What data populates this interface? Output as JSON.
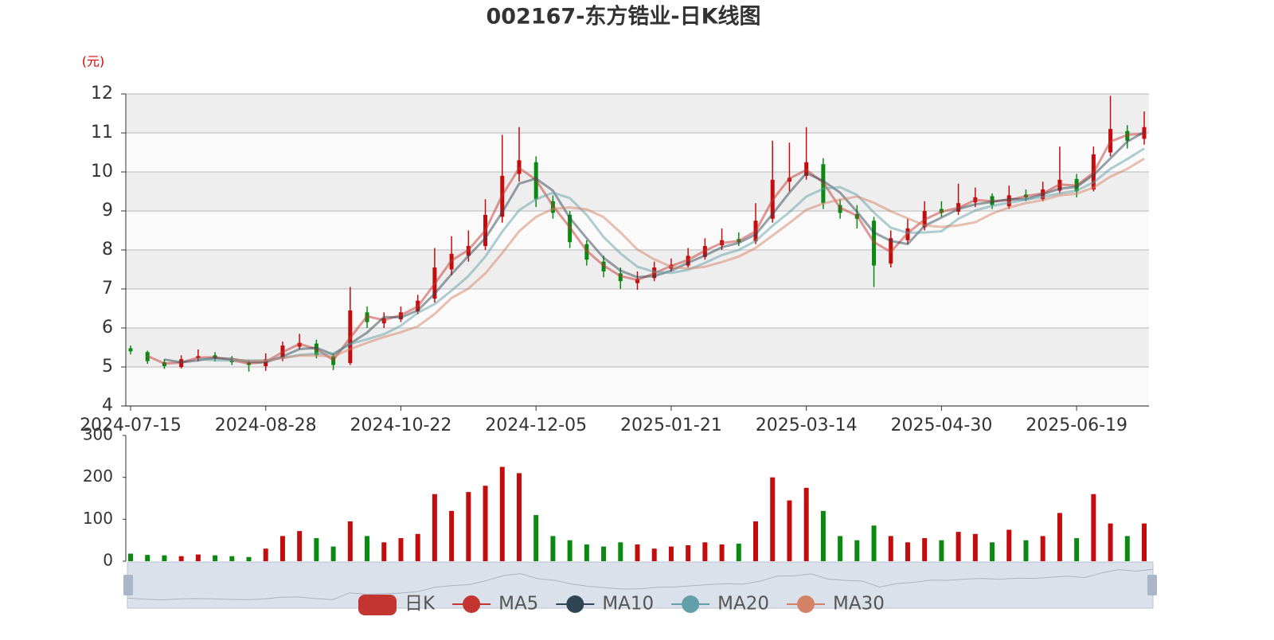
{
  "chart_data": {
    "type": "candlestick",
    "title": "002167-东方锆业-日K线图",
    "y_label": "(元)",
    "categories": [
      "2024-07-15",
      null,
      null,
      null,
      null,
      null,
      null,
      null,
      "2024-08-28",
      null,
      null,
      null,
      null,
      null,
      null,
      null,
      "2024-10-22",
      null,
      null,
      null,
      null,
      null,
      null,
      null,
      "2024-12-05",
      null,
      null,
      null,
      null,
      null,
      null,
      null,
      "2025-01-21",
      null,
      null,
      null,
      null,
      null,
      null,
      null,
      "2025-03-14",
      null,
      null,
      null,
      null,
      null,
      null,
      null,
      "2025-04-30",
      null,
      null,
      null,
      null,
      null,
      null,
      null,
      "2025-06-19",
      null,
      null,
      null,
      null
    ],
    "ylim": [
      4,
      12
    ],
    "yticks": [
      4,
      5,
      6,
      7,
      8,
      9,
      10,
      11,
      12
    ],
    "grid": true,
    "up_color": "#c40c0c",
    "down_color": "#0b8a12",
    "line_opacity": 0.5,
    "series": [
      {
        "name": "日K",
        "color": "#c23531",
        "values": [
          [
            5.48,
            5.4,
            5.32,
            5.55
          ],
          [
            5.38,
            5.15,
            5.08,
            5.42
          ],
          [
            5.12,
            5.02,
            4.95,
            5.2
          ],
          [
            5.0,
            5.2,
            4.96,
            5.3
          ],
          [
            5.22,
            5.28,
            5.15,
            5.45
          ],
          [
            5.3,
            5.22,
            5.14,
            5.38
          ],
          [
            5.2,
            5.12,
            5.05,
            5.28
          ],
          [
            5.1,
            5.05,
            4.88,
            5.18
          ],
          [
            5.02,
            5.2,
            4.9,
            5.35
          ],
          [
            5.22,
            5.55,
            5.15,
            5.65
          ],
          [
            5.52,
            5.62,
            5.45,
            5.85
          ],
          [
            5.6,
            5.3,
            5.22,
            5.7
          ],
          [
            5.28,
            5.05,
            4.92,
            5.35
          ],
          [
            5.1,
            6.45,
            5.05,
            7.05
          ],
          [
            6.4,
            6.15,
            6.0,
            6.55
          ],
          [
            6.12,
            6.25,
            6.0,
            6.4
          ],
          [
            6.22,
            6.4,
            6.15,
            6.55
          ],
          [
            6.42,
            6.7,
            6.35,
            6.85
          ],
          [
            6.75,
            7.55,
            6.65,
            8.05
          ],
          [
            7.5,
            7.9,
            7.35,
            8.35
          ],
          [
            7.85,
            8.1,
            7.7,
            8.5
          ],
          [
            8.1,
            8.9,
            8.0,
            9.3
          ],
          [
            8.85,
            9.9,
            8.7,
            10.95
          ],
          [
            9.95,
            10.3,
            9.75,
            11.15
          ],
          [
            10.25,
            9.3,
            9.1,
            10.4
          ],
          [
            9.25,
            8.95,
            8.8,
            9.4
          ],
          [
            8.9,
            8.2,
            8.05,
            9.0
          ],
          [
            8.15,
            7.75,
            7.6,
            8.25
          ],
          [
            7.7,
            7.45,
            7.3,
            7.85
          ],
          [
            7.4,
            7.2,
            7.0,
            7.55
          ],
          [
            7.15,
            7.25,
            6.98,
            7.45
          ],
          [
            7.28,
            7.55,
            7.2,
            7.7
          ],
          [
            7.52,
            7.62,
            7.45,
            7.78
          ],
          [
            7.6,
            7.85,
            7.55,
            8.05
          ],
          [
            7.82,
            8.1,
            7.75,
            8.3
          ],
          [
            8.12,
            8.25,
            8.0,
            8.55
          ],
          [
            8.28,
            8.2,
            8.1,
            8.45
          ],
          [
            8.22,
            8.75,
            8.15,
            9.2
          ],
          [
            8.8,
            9.8,
            8.7,
            10.8
          ],
          [
            9.75,
            9.85,
            9.5,
            10.75
          ],
          [
            9.9,
            10.25,
            9.8,
            11.15
          ],
          [
            10.2,
            9.2,
            9.05,
            10.35
          ],
          [
            9.15,
            8.95,
            8.8,
            9.3
          ],
          [
            8.92,
            8.8,
            8.55,
            9.15
          ],
          [
            8.75,
            7.6,
            7.05,
            8.85
          ],
          [
            7.65,
            8.3,
            7.55,
            8.5
          ],
          [
            8.25,
            8.55,
            8.15,
            8.8
          ],
          [
            8.58,
            9.0,
            8.5,
            9.25
          ],
          [
            9.05,
            8.95,
            8.85,
            9.25
          ],
          [
            8.98,
            9.2,
            8.9,
            9.7
          ],
          [
            9.22,
            9.35,
            9.1,
            9.6
          ],
          [
            9.38,
            9.15,
            9.05,
            9.45
          ],
          [
            9.12,
            9.4,
            9.05,
            9.65
          ],
          [
            9.42,
            9.35,
            9.25,
            9.55
          ],
          [
            9.3,
            9.55,
            9.25,
            9.75
          ],
          [
            9.52,
            9.8,
            9.45,
            10.65
          ],
          [
            9.82,
            9.5,
            9.35,
            9.95
          ],
          [
            9.55,
            10.45,
            9.5,
            10.65
          ],
          [
            10.5,
            11.1,
            10.4,
            11.95
          ],
          [
            11.05,
            10.8,
            10.6,
            11.2
          ],
          [
            10.85,
            11.15,
            10.7,
            11.55
          ]
        ]
      },
      {
        "name": "MA5",
        "color": "#c23531",
        "values": [
          null,
          5.28,
          5.09,
          5.11,
          5.24,
          5.25,
          5.17,
          5.09,
          5.13,
          5.38,
          5.59,
          5.46,
          5.18,
          5.75,
          6.3,
          6.2,
          6.33,
          6.55,
          7.13,
          7.73,
          8.0,
          8.5,
          9.4,
          10.1,
          9.8,
          9.13,
          8.58,
          7.98,
          7.6,
          7.33,
          7.23,
          7.4,
          7.59,
          7.74,
          7.98,
          8.18,
          8.23,
          8.48,
          9.28,
          9.83,
          10.05,
          9.73,
          9.08,
          8.88,
          8.2,
          7.95,
          8.43,
          8.78,
          8.98,
          9.08,
          9.28,
          9.25,
          9.28,
          9.38,
          9.45,
          9.68,
          9.65,
          9.98,
          10.78,
          10.95,
          10.98
        ]
      },
      {
        "name": "MA10",
        "color": "#2f4554",
        "values": [
          null,
          null,
          5.19,
          5.12,
          5.17,
          5.23,
          5.21,
          5.13,
          5.12,
          5.27,
          5.46,
          5.49,
          5.32,
          5.6,
          5.88,
          6.28,
          6.27,
          6.45,
          6.88,
          7.38,
          7.85,
          8.3,
          8.97,
          9.7,
          9.83,
          9.52,
          8.82,
          8.3,
          7.8,
          7.47,
          7.3,
          7.33,
          7.47,
          7.67,
          7.86,
          8.07,
          8.18,
          8.4,
          8.92,
          9.47,
          9.97,
          9.77,
          9.47,
          8.98,
          8.45,
          8.23,
          8.15,
          8.62,
          8.83,
          9.05,
          9.17,
          9.23,
          9.3,
          9.3,
          9.43,
          9.57,
          9.62,
          9.92,
          10.35,
          10.78,
          11.02
        ]
      },
      {
        "name": "MA20",
        "color": "#61a0a8",
        "values": [
          null,
          null,
          null,
          null,
          5.21,
          5.17,
          5.17,
          5.17,
          5.17,
          5.23,
          5.31,
          5.34,
          5.34,
          5.59,
          5.71,
          5.84,
          6.06,
          6.39,
          6.61,
          6.96,
          7.33,
          7.83,
          8.47,
          9.02,
          9.3,
          9.47,
          9.33,
          8.9,
          8.33,
          7.91,
          7.57,
          7.44,
          7.41,
          7.49,
          7.67,
          7.87,
          8.0,
          8.23,
          8.62,
          8.97,
          9.37,
          9.57,
          9.61,
          9.41,
          8.96,
          8.57,
          8.44,
          8.45,
          8.48,
          8.8,
          9.01,
          9.13,
          9.21,
          9.29,
          9.36,
          9.45,
          9.52,
          9.73,
          10.08,
          10.33,
          10.6
        ]
      },
      {
        "name": "MA30",
        "color": "#d48265",
        "values": [
          null,
          null,
          null,
          null,
          null,
          null,
          5.2,
          5.15,
          5.16,
          5.23,
          5.29,
          5.29,
          5.27,
          5.46,
          5.62,
          5.77,
          5.89,
          6.04,
          6.36,
          6.77,
          7.01,
          7.4,
          7.92,
          8.48,
          8.85,
          9.05,
          9.09,
          9.04,
          8.84,
          8.45,
          8.01,
          7.76,
          7.57,
          7.52,
          7.57,
          7.69,
          7.83,
          8.05,
          8.37,
          8.69,
          9.03,
          9.19,
          9.29,
          9.37,
          9.21,
          8.99,
          8.81,
          8.63,
          8.59,
          8.63,
          8.71,
          8.93,
          9.09,
          9.2,
          9.28,
          9.4,
          9.44,
          9.6,
          9.88,
          10.08,
          10.34
        ]
      }
    ],
    "volume": {
      "ylim": [
        0,
        300
      ],
      "yticks": [
        0,
        100,
        200,
        300
      ],
      "values": [
        18,
        15,
        14,
        12,
        16,
        14,
        12,
        10,
        30,
        60,
        72,
        55,
        35,
        95,
        60,
        45,
        55,
        65,
        160,
        120,
        165,
        180,
        225,
        210,
        110,
        60,
        50,
        40,
        35,
        45,
        40,
        30,
        35,
        38,
        45,
        40,
        42,
        95,
        200,
        145,
        175,
        120,
        60,
        50,
        85,
        60,
        45,
        55,
        50,
        70,
        65,
        45,
        75,
        50,
        60,
        115,
        55,
        160,
        90,
        60,
        90
      ]
    }
  }
}
